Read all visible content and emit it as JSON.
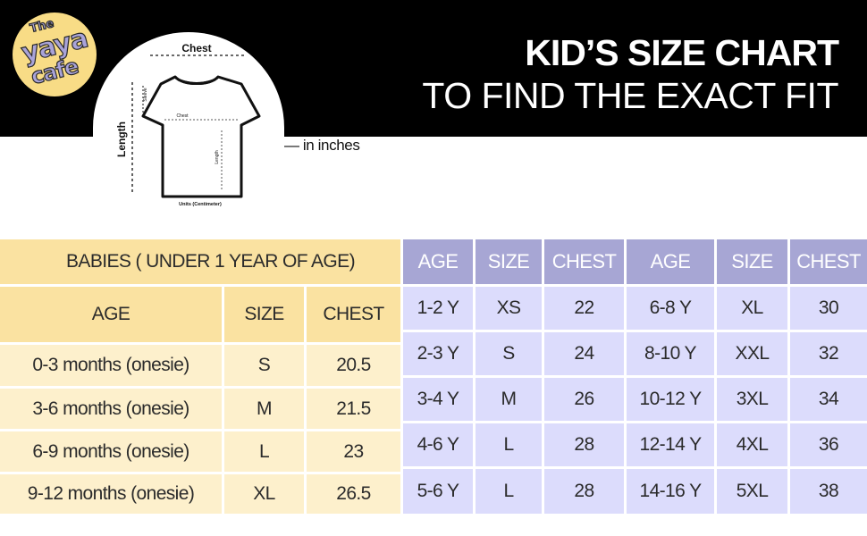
{
  "brand": {
    "logo_line1": "The",
    "logo_line2": "yaya",
    "logo_line3": "cafe"
  },
  "header": {
    "title_line1": "KID’S  SIZE CHART",
    "title_line2": "TO FIND THE EXACT FIT"
  },
  "diagram": {
    "chest_label": "Chest",
    "length_label": "Length",
    "sleeve_label": "Sleeve",
    "inner_chest_label": "Chest",
    "inner_length_label": "Length",
    "units_caption": "Units (Centimeter)",
    "units_note": "— in inches"
  },
  "colors": {
    "banner": "#000000",
    "yellow_header": "#fae2a1",
    "yellow_row": "#fdf0cc",
    "purple_header": "#a7a6d4",
    "purple_row": "#dcdcfc"
  },
  "babies": {
    "banner": "BABIES ( UNDER 1 YEAR OF AGE)",
    "headers": [
      "AGE",
      "SIZE",
      "CHEST"
    ],
    "rows": [
      [
        "0-3 months (onesie)",
        "S",
        "20.5"
      ],
      [
        "3-6 months (onesie)",
        "M",
        "21.5"
      ],
      [
        "6-9 months (onesie)",
        "L",
        "23"
      ],
      [
        "9-12 months (onesie)",
        "XL",
        "26.5"
      ]
    ]
  },
  "kids": {
    "headers": [
      "AGE",
      "SIZE",
      "CHEST",
      "AGE",
      "SIZE",
      "CHEST"
    ],
    "rows": [
      [
        "1-2 Y",
        "XS",
        "22",
        "6-8 Y",
        "XL",
        "30"
      ],
      [
        "2-3 Y",
        "S",
        "24",
        "8-10 Y",
        "XXL",
        "32"
      ],
      [
        "3-4 Y",
        "M",
        "26",
        "10-12 Y",
        "3XL",
        "34"
      ],
      [
        "4-6 Y",
        "L",
        "28",
        "12-14 Y",
        "4XL",
        "36"
      ],
      [
        "5-6 Y",
        "L",
        "28",
        "14-16 Y",
        "5XL",
        "38"
      ]
    ]
  }
}
